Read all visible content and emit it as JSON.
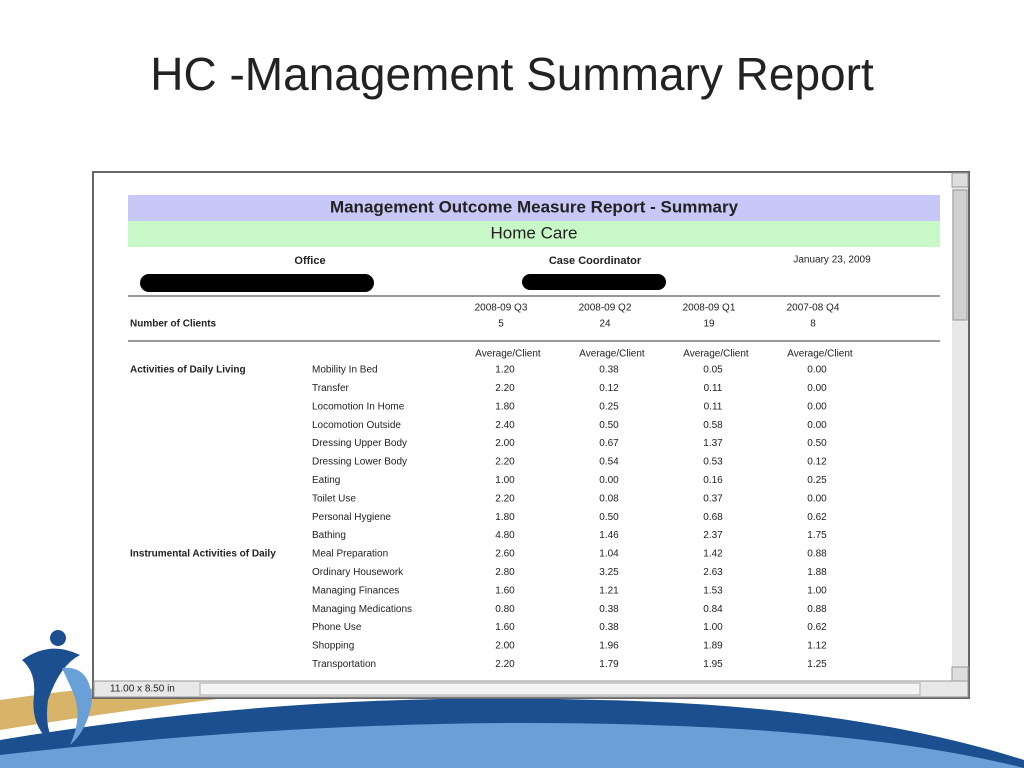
{
  "slide_title": "HC -Management Summary Report",
  "report": {
    "title": "Management Outcome Measure Report - Summary",
    "subtitle": "Home Care",
    "office_label": "Office",
    "coordinator_label": "Case Coordinator",
    "date": "January 23, 2009",
    "clients_label": "Number of Clients",
    "columns": [
      {
        "quarter": "2008-09 Q3",
        "clients": "5",
        "unit": "Average/Client"
      },
      {
        "quarter": "2008-09 Q2",
        "clients": "24",
        "unit": "Average/Client"
      },
      {
        "quarter": "2008-09 Q1",
        "clients": "19",
        "unit": "Average/Client"
      },
      {
        "quarter": "2007-08 Q4",
        "clients": "8",
        "unit": "Average/Client"
      }
    ],
    "sections": [
      {
        "name": "Activities of Daily Living",
        "rows": [
          {
            "measure": "Mobility In Bed",
            "values": [
              "1.20",
              "0.38",
              "0.05",
              "0.00"
            ]
          },
          {
            "measure": "Transfer",
            "values": [
              "2.20",
              "0.12",
              "0.11",
              "0.00"
            ]
          },
          {
            "measure": "Locomotion In Home",
            "values": [
              "1.80",
              "0.25",
              "0.11",
              "0.00"
            ]
          },
          {
            "measure": "Locomotion Outside",
            "values": [
              "2.40",
              "0.50",
              "0.58",
              "0.00"
            ]
          },
          {
            "measure": "Dressing Upper Body",
            "values": [
              "2.00",
              "0.67",
              "1.37",
              "0.50"
            ]
          },
          {
            "measure": "Dressing Lower Body",
            "values": [
              "2.20",
              "0.54",
              "0.53",
              "0.12"
            ]
          },
          {
            "measure": "Eating",
            "values": [
              "1.00",
              "0.00",
              "0.16",
              "0.25"
            ]
          },
          {
            "measure": "Toilet Use",
            "values": [
              "2.20",
              "0.08",
              "0.37",
              "0.00"
            ]
          },
          {
            "measure": "Personal Hygiene",
            "values": [
              "1.80",
              "0.50",
              "0.68",
              "0.62"
            ]
          },
          {
            "measure": "Bathing",
            "values": [
              "4.80",
              "1.46",
              "2.37",
              "1.75"
            ]
          }
        ]
      },
      {
        "name": "Instrumental Activities of Daily",
        "rows": [
          {
            "measure": "Meal Preparation",
            "values": [
              "2.60",
              "1.04",
              "1.42",
              "0.88"
            ]
          },
          {
            "measure": "Ordinary Housework",
            "values": [
              "2.80",
              "3.25",
              "2.63",
              "1.88"
            ]
          },
          {
            "measure": "Managing Finances",
            "values": [
              "1.60",
              "1.21",
              "1.53",
              "1.00"
            ]
          },
          {
            "measure": "Managing Medications",
            "values": [
              "0.80",
              "0.38",
              "0.84",
              "0.88"
            ]
          },
          {
            "measure": "Phone Use",
            "values": [
              "1.60",
              "0.38",
              "1.00",
              "0.62"
            ]
          },
          {
            "measure": "Shopping",
            "values": [
              "2.00",
              "1.96",
              "1.89",
              "1.12"
            ]
          },
          {
            "measure": "Transportation",
            "values": [
              "2.20",
              "1.79",
              "1.95",
              "1.25"
            ]
          }
        ]
      }
    ],
    "page_size": "11.00 x 8.50 in"
  }
}
